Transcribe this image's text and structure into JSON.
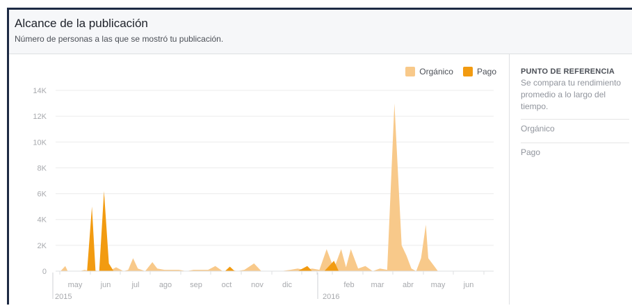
{
  "header": {
    "title": "Alcance de la publicación",
    "subtitle": "Número de personas a las que se mostró tu publicación."
  },
  "legend": {
    "organic_label": "Orgánico",
    "paid_label": "Pago"
  },
  "colors": {
    "organic": "#f8c98a",
    "paid": "#f29b11",
    "grid": "#ebebeb",
    "axis_text": "#a7a9ad"
  },
  "sidebar": {
    "title": "PUNTO DE REFERENCIA",
    "description": "Se compara tu rendimiento promedio a lo largo del tiempo.",
    "items": [
      {
        "label": "Orgánico"
      },
      {
        "label": "Pago"
      }
    ]
  },
  "chart_data": {
    "type": "area",
    "ylim": [
      0,
      14000
    ],
    "y_ticks": [
      "0",
      "2K",
      "4K",
      "6K",
      "8K",
      "10K",
      "12K",
      "14K"
    ],
    "month_labels": [
      "may",
      "jun",
      "jul",
      "ago",
      "sep",
      "oct",
      "nov",
      "dic",
      "feb",
      "mar",
      "abr",
      "may",
      "jun"
    ],
    "year_labels": [
      "2015",
      "2016"
    ],
    "series": [
      {
        "name": "Orgánico",
        "x_days": [
          0,
          4,
          8,
          10,
          20,
          24,
          28,
          30,
          36,
          40,
          44,
          50,
          56,
          60,
          64,
          68,
          74,
          80,
          84,
          90,
          96,
          102,
          108,
          114,
          120,
          126,
          132,
          138,
          142,
          146,
          150,
          156,
          164,
          170,
          178,
          186,
          194,
          200,
          206,
          212,
          218,
          224,
          230,
          236,
          240,
          244,
          250,
          256,
          262,
          268,
          274,
          280,
          286,
          290,
          294,
          298,
          302,
          306,
          308,
          312,
          316,
          320,
          324,
          328,
          332,
          336,
          340,
          344,
          348,
          352,
          356,
          362
        ],
        "values": [
          0,
          0,
          400,
          0,
          0,
          100,
          0,
          100,
          0,
          0,
          0,
          300,
          0,
          100,
          1000,
          200,
          0,
          700,
          200,
          100,
          100,
          100,
          0,
          100,
          100,
          100,
          400,
          0,
          0,
          100,
          0,
          100,
          600,
          0,
          0,
          0,
          100,
          200,
          100,
          200,
          100,
          1700,
          200,
          1700,
          300,
          1700,
          200,
          400,
          0,
          200,
          100,
          13000,
          2000,
          1200,
          200,
          0,
          1000,
          3600,
          1000,
          500,
          0,
          0,
          0,
          0,
          0,
          0,
          0,
          0,
          0,
          0,
          0,
          0
        ]
      },
      {
        "name": "Pago",
        "x_days": [
          0,
          26,
          30,
          33,
          36,
          40,
          44,
          48,
          52,
          56,
          100,
          140,
          144,
          148,
          152,
          200,
          208,
          212,
          216,
          222,
          230,
          234,
          238,
          362
        ],
        "values": [
          0,
          0,
          5000,
          0,
          0,
          6200,
          600,
          0,
          0,
          0,
          0,
          0,
          350,
          0,
          0,
          0,
          400,
          0,
          0,
          0,
          800,
          0,
          0,
          0
        ]
      }
    ],
    "grid": true,
    "legend_position": "top-right"
  }
}
